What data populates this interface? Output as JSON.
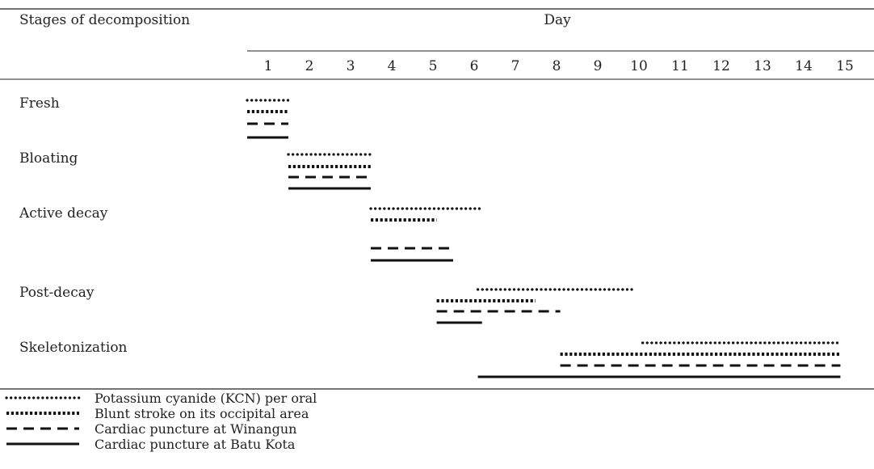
{
  "chart_data": {
    "type": "gantt",
    "header": {
      "stage_column": "Stages of decomposition",
      "day_column": "Day"
    },
    "days": [
      "1",
      "2",
      "3",
      "4",
      "5",
      "6",
      "7",
      "8",
      "9",
      "10",
      "11",
      "12",
      "13",
      "14",
      "15"
    ],
    "stages": [
      "Fresh",
      "Bloating",
      "Active decay",
      "Post-decay",
      "Skeletonization"
    ],
    "series": [
      {
        "name": "Potassium cyanide (KCN) per oral",
        "line_style": "dotted",
        "ranges": [
          {
            "stage": "Fresh",
            "start": 1,
            "end": 2
          },
          {
            "stage": "Bloating",
            "start": 2,
            "end": 4
          },
          {
            "stage": "Active decay",
            "start": 4,
            "end": 6.7
          },
          {
            "stage": "Post-decay",
            "start": 6.6,
            "end": 10.4
          },
          {
            "stage": "Skeletonization",
            "start": 10.6,
            "end": 15.4
          }
        ]
      },
      {
        "name": "Blunt stroke on its occipital area",
        "line_style": "square-dotted",
        "ranges": [
          {
            "stage": "Fresh",
            "start": 1,
            "end": 2
          },
          {
            "stage": "Bloating",
            "start": 2,
            "end": 4
          },
          {
            "stage": "Active decay",
            "start": 4,
            "end": 5.6
          },
          {
            "stage": "Post-decay",
            "start": 5.6,
            "end": 8
          },
          {
            "stage": "Skeletonization",
            "start": 8.6,
            "end": 15.4
          }
        ]
      },
      {
        "name": "Cardiac puncture at Winangun",
        "line_style": "dashed",
        "ranges": [
          {
            "stage": "Fresh",
            "start": 1,
            "end": 2
          },
          {
            "stage": "Bloating",
            "start": 2,
            "end": 4
          },
          {
            "stage": "Active decay",
            "start": 4,
            "end": 6
          },
          {
            "stage": "Post-decay",
            "start": 5.6,
            "end": 8.6
          },
          {
            "stage": "Skeletonization",
            "start": 8.6,
            "end": 15.4
          }
        ]
      },
      {
        "name": "Cardiac puncture at Batu Kota",
        "line_style": "solid",
        "ranges": [
          {
            "stage": "Fresh",
            "start": 1,
            "end": 2
          },
          {
            "stage": "Bloating",
            "start": 2,
            "end": 4
          },
          {
            "stage": "Active decay",
            "start": 4,
            "end": 6
          },
          {
            "stage": "Post-decay",
            "start": 5.6,
            "end": 6.7
          },
          {
            "stage": "Skeletonization",
            "start": 6.6,
            "end": 15.4
          }
        ]
      }
    ],
    "legend_position": "bottom-left",
    "grid": false
  }
}
